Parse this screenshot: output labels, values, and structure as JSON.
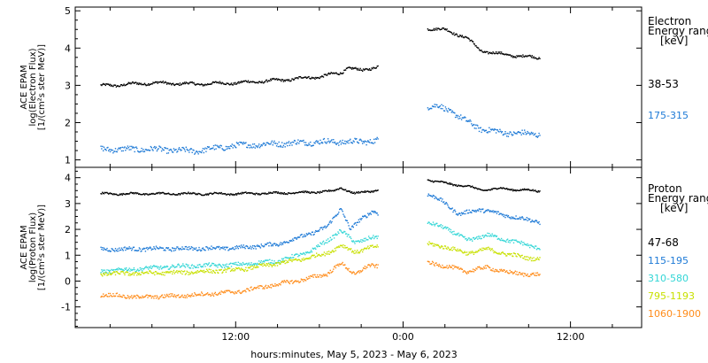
{
  "chart_data": {
    "type": "scatter",
    "xlabel": "hours:minutes,  May  5, 2023 - May  6, 2023",
    "x_tick_labels": [
      "12:00",
      "0:00",
      "12:00"
    ],
    "data_window_hours": [
      2.3,
      33.8
    ],
    "data_gap_hours": [
      22.2,
      25.7
    ],
    "panels": [
      {
        "ylabel_lines": [
          "ACE EPAM",
          "log(Electron Flux)",
          "[1/(cm²s ster MeV)]"
        ],
        "ylim": [
          0.8,
          5.1
        ],
        "y_ticks": [
          1,
          2,
          3,
          4,
          5
        ],
        "legend_title_lines": [
          "Electron",
          "Energy range",
          "[keV]"
        ],
        "series": [
          {
            "name": "38-53",
            "color": "#000000",
            "knots_x": [
              2.3,
              6,
              9,
              12,
              15,
              18,
              19.5,
              20,
              21,
              22.2,
              25.7,
              27,
              28.5,
              29.5,
              31,
              33.8
            ],
            "knots_y": [
              3.0,
              3.08,
              3.05,
              3.08,
              3.15,
              3.25,
              3.35,
              3.5,
              3.4,
              3.55,
              4.55,
              4.5,
              4.3,
              3.95,
              3.85,
              3.75
            ]
          },
          {
            "name": "175-315",
            "color": "#1e7ad6",
            "knots_x": [
              2.3,
              6,
              9,
              12,
              15,
              18,
              21,
              22.2,
              25.7,
              26.5,
              27.5,
              28.5,
              29.5,
              31,
              33.8
            ],
            "knots_y": [
              1.3,
              1.3,
              1.25,
              1.4,
              1.45,
              1.5,
              1.5,
              1.55,
              2.45,
              2.45,
              2.3,
              2.05,
              1.85,
              1.75,
              1.7
            ]
          }
        ]
      },
      {
        "ylabel_lines": [
          "ACE EPAM",
          "log(Proton Flux)",
          "[1/(cm²s ster MeV)]"
        ],
        "ylim": [
          -1.8,
          4.4
        ],
        "y_ticks": [
          -1,
          0,
          1,
          2,
          3,
          4
        ],
        "legend_title_lines": [
          "Proton",
          "Energy range",
          "[keV]"
        ],
        "series": [
          {
            "name": "47-68",
            "color": "#000000",
            "knots_x": [
              2.3,
              12,
              17,
              19,
              19.5,
              20.5,
              21.5,
              22.2,
              25.7,
              27,
              28.5,
              29.5,
              31,
              33.8
            ],
            "knots_y": [
              3.4,
              3.4,
              3.45,
              3.5,
              3.65,
              3.4,
              3.5,
              3.55,
              3.95,
              3.8,
              3.7,
              3.55,
              3.6,
              3.5
            ]
          },
          {
            "name": "115-195",
            "color": "#1e7ad6",
            "knots_x": [
              2.3,
              12,
              15,
              17,
              18.5,
              19.5,
              20.2,
              21,
              21.8,
              22.2,
              25.7,
              26.8,
              28,
              29.5,
              31,
              33.8
            ],
            "knots_y": [
              1.25,
              1.3,
              1.45,
              1.8,
              2.1,
              2.85,
              2.0,
              2.45,
              2.75,
              2.6,
              3.4,
              3.1,
              2.6,
              2.8,
              2.6,
              2.3
            ]
          },
          {
            "name": "310-580",
            "color": "#33d6d6",
            "knots_x": [
              2.3,
              8,
              12,
              15,
              17,
              18.5,
              19.5,
              20.5,
              21.5,
              22.2,
              25.7,
              27,
              28.5,
              30,
              31.5,
              33.8
            ],
            "knots_y": [
              0.4,
              0.6,
              0.65,
              0.8,
              1.1,
              1.55,
              2.0,
              1.5,
              1.7,
              1.7,
              2.25,
              2.1,
              1.6,
              1.8,
              1.6,
              1.3
            ]
          },
          {
            "name": "795-1193",
            "color": "#c8e000",
            "knots_x": [
              2.3,
              8,
              12,
              15,
              17,
              18.5,
              19.5,
              20.5,
              21.5,
              22.2,
              25.7,
              27,
              28.5,
              30,
              31.5,
              33.8
            ],
            "knots_y": [
              0.3,
              0.35,
              0.45,
              0.7,
              0.9,
              1.1,
              1.4,
              1.15,
              1.3,
              1.35,
              1.45,
              1.35,
              1.1,
              1.25,
              1.05,
              0.85
            ]
          },
          {
            "name": "1060-1900",
            "color": "#ff8c1a",
            "knots_x": [
              2.3,
              5,
              8,
              12,
              15,
              17,
              18.5,
              19.5,
              20.5,
              21.5,
              22.2,
              25.7,
              27,
              28.5,
              30,
              31.5,
              33.8
            ],
            "knots_y": [
              -0.5,
              -0.6,
              -0.55,
              -0.4,
              -0.1,
              0.1,
              0.3,
              0.7,
              0.3,
              0.6,
              0.6,
              0.75,
              0.6,
              0.4,
              0.55,
              0.35,
              0.25
            ]
          }
        ]
      }
    ]
  }
}
